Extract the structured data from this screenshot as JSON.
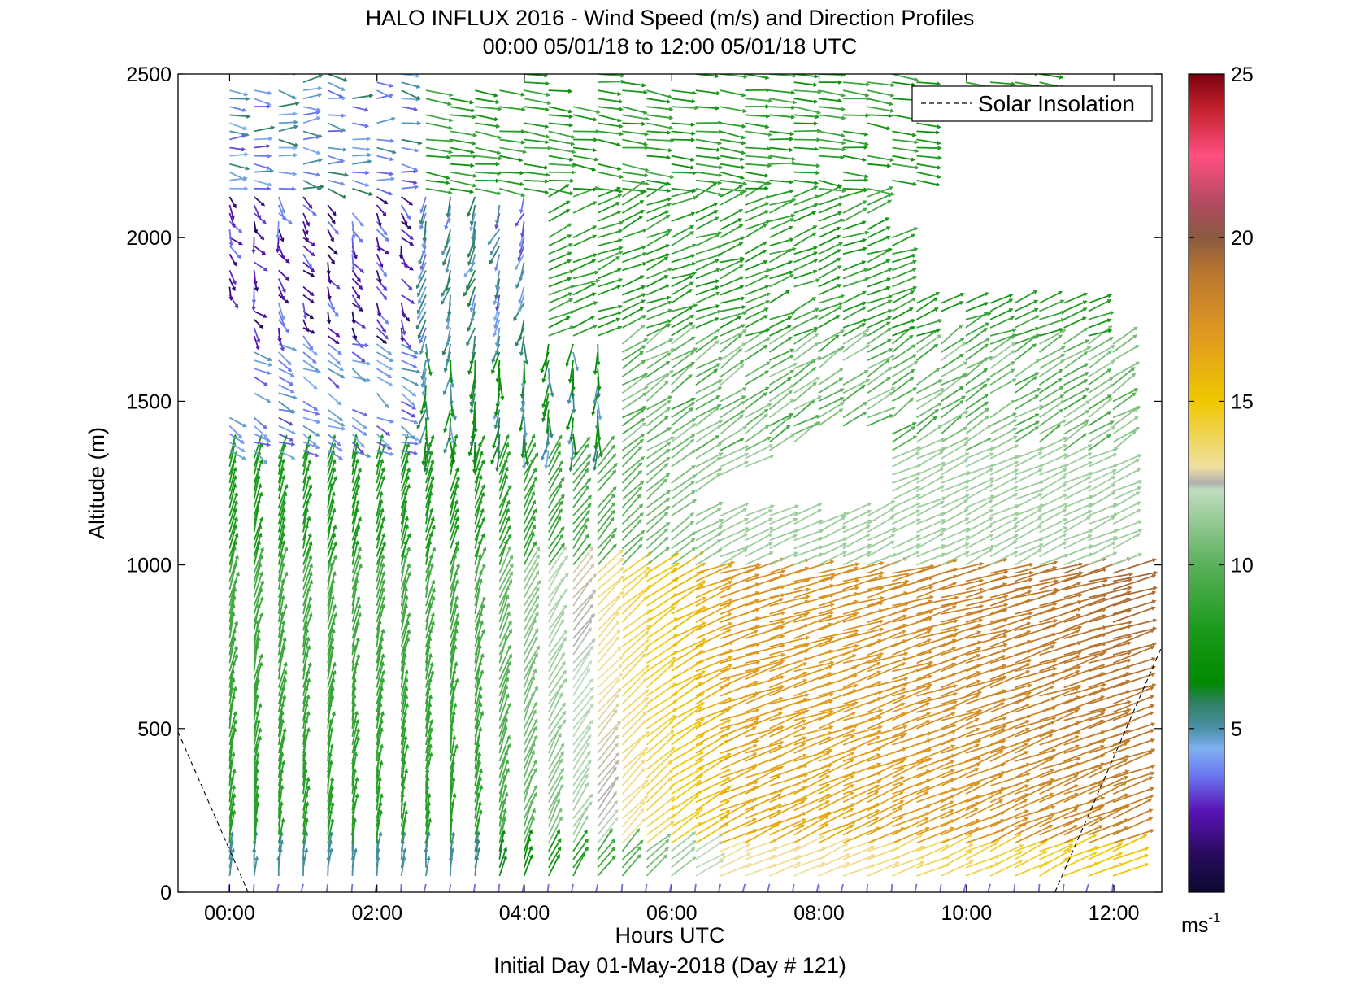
{
  "chart_data": {
    "type": "quiver",
    "title": "HALO INFLUX 2016 - Wind Speed (m/s) and Direction Profiles",
    "subtitle": "00:00 05/01/18 to 12:00 05/01/18  UTC",
    "xlabel": "Hours UTC",
    "footer": "Initial Day 01-May-2018 (Day # 121)",
    "ylabel": "Altitude (m)",
    "x_ticks": [
      "00:00",
      "02:00",
      "04:00",
      "06:00",
      "08:00",
      "10:00",
      "12:00"
    ],
    "x_tick_hours": [
      0,
      2,
      4,
      6,
      8,
      10,
      12
    ],
    "xlim_hours": [
      -0.7,
      12.65
    ],
    "ylim": [
      0,
      2500
    ],
    "y_ticks": [
      0,
      500,
      1000,
      1500,
      2000,
      2500
    ],
    "colorbar": {
      "range": [
        0,
        25
      ],
      "ticks": [
        5,
        10,
        15,
        20,
        25
      ],
      "unit": "ms",
      "unit_exponent": "-1",
      "stops": [
        {
          "v": 0,
          "c": "#0a0a30"
        },
        {
          "v": 1.2,
          "c": "#2a0a60"
        },
        {
          "v": 2.5,
          "c": "#5a14b8"
        },
        {
          "v": 3.6,
          "c": "#6a7af0"
        },
        {
          "v": 4.4,
          "c": "#80b0f0"
        },
        {
          "v": 5.0,
          "c": "#4a90a8"
        },
        {
          "v": 5.8,
          "c": "#2e8060"
        },
        {
          "v": 6.4,
          "c": "#008a00"
        },
        {
          "v": 8.0,
          "c": "#1a9a1a"
        },
        {
          "v": 10.0,
          "c": "#5ab05a"
        },
        {
          "v": 12.3,
          "c": "#c0dcc0"
        },
        {
          "v": 12.5,
          "c": "#b0b0b0"
        },
        {
          "v": 13.0,
          "c": "#f0e0a0"
        },
        {
          "v": 15.0,
          "c": "#f0c800"
        },
        {
          "v": 17.0,
          "c": "#e09a20"
        },
        {
          "v": 19.0,
          "c": "#b87430"
        },
        {
          "v": 20.0,
          "c": "#8a5a40"
        },
        {
          "v": 21.0,
          "c": "#b04a60"
        },
        {
          "v": 22.5,
          "c": "#ff4f80"
        },
        {
          "v": 24.0,
          "c": "#c0202a"
        },
        {
          "v": 25.0,
          "c": "#7a0010"
        }
      ]
    },
    "legend": {
      "entries": [
        "Solar Insolation"
      ],
      "position": "top-right",
      "line_style": "dashed",
      "color": "#000000"
    },
    "solar_insolation": {
      "segments": [
        {
          "x_hours": [
            -0.7,
            0.25
          ],
          "y": [
            490,
            0
          ]
        },
        {
          "x_hours": [
            11.2,
            12.65
          ],
          "y": [
            0,
            750
          ]
        }
      ]
    },
    "profile_times_hours": {
      "start": 0,
      "end": 12,
      "step": 0.333
    },
    "profile_altitudes_m": {
      "start": 0,
      "step": 25
    },
    "wind_field": {
      "description_key": "speed/direction regime by region",
      "regions": [
        {
          "hours": [
            0,
            1.8
          ],
          "altitude_m": [
            0,
            1350
          ],
          "speed_ms": [
            7,
            9
          ],
          "direction": "northward, low-level rotation near surface"
        },
        {
          "hours": [
            0,
            2.5
          ],
          "altitude_m": [
            1550,
            2500
          ],
          "speed_ms": [
            1,
            5
          ],
          "direction": "variable, southeastward"
        },
        {
          "hours": [
            3.0,
            5.0
          ],
          "altitude_m": [
            1300,
            2100
          ],
          "speed_ms": [
            4,
            8
          ],
          "direction": "southward / variable"
        },
        {
          "hours": [
            4.0,
            12.0
          ],
          "altitude_m": [
            0,
            1000
          ],
          "speed_ms": [
            13,
            19
          ],
          "direction": "north-eastward"
        },
        {
          "hours": [
            5.0,
            12.0
          ],
          "altitude_m": [
            1000,
            1700
          ],
          "speed_ms": [
            9,
            12
          ],
          "direction": "north-eastward"
        },
        {
          "hours": [
            3.0,
            9.5
          ],
          "altitude_m": [
            1900,
            2500
          ],
          "speed_ms": [
            7,
            9
          ],
          "direction": "eastward"
        }
      ]
    }
  }
}
